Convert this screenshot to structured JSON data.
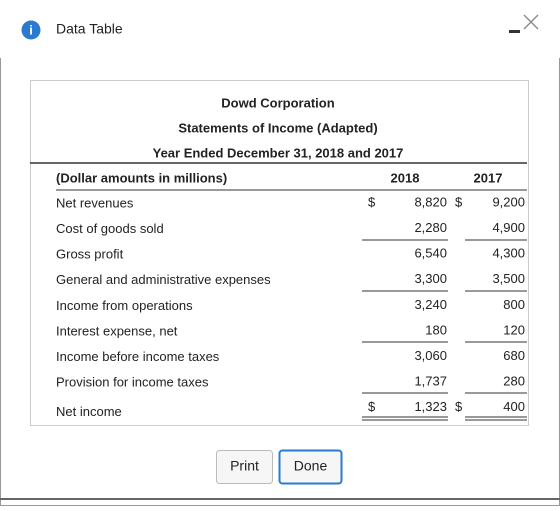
{
  "window": {
    "title": "Data Table"
  },
  "table": {
    "title": [
      "Dowd Corporation",
      "Statements of Income (Adapted)",
      "Year Ended December 31, 2018 and 2017"
    ],
    "columns": [
      "(Dollar amounts in millions)",
      "2018",
      "2017"
    ],
    "rows": [
      {
        "label": "Net revenues",
        "currency_2018": "$",
        "value_2018": "8,820",
        "currency_2017": "$",
        "value_2017": "9,200"
      },
      {
        "label": "Cost of goods sold",
        "value_2018": "2,280",
        "value_2017": "4,900"
      },
      {
        "label": "Gross profit",
        "value_2018": "6,540",
        "value_2017": "4,300"
      },
      {
        "label": "General and administrative expenses",
        "value_2018": "3,300",
        "value_2017": "3,500"
      },
      {
        "label": "Income from operations",
        "value_2018": "3,240",
        "value_2017": "800"
      },
      {
        "label": "Interest expense, net",
        "value_2018": "180",
        "value_2017": "120"
      },
      {
        "label": "Income before income taxes",
        "value_2018": "3,060",
        "value_2017": "680"
      },
      {
        "label": "Provision for income taxes",
        "value_2018": "1,737",
        "value_2017": "280"
      },
      {
        "label": "Net income",
        "currency_2018": "$",
        "value_2018": "1,323",
        "currency_2017": "$",
        "value_2017": "400"
      }
    ]
  },
  "buttons": [
    "Print",
    "Done"
  ]
}
